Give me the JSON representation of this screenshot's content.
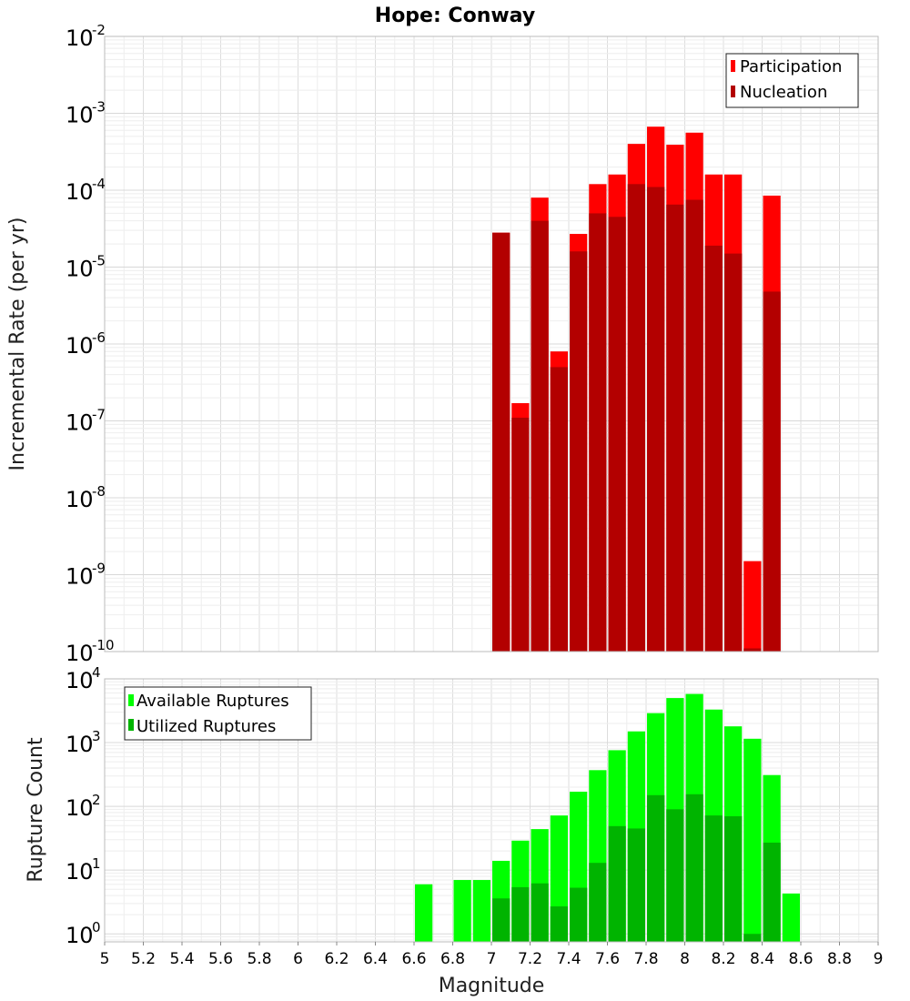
{
  "title": "Hope: Conway",
  "chart_data": [
    {
      "type": "bar",
      "ylabel": "Incremental Rate (per yr)",
      "yscale": "log",
      "ylim": [
        1e-10,
        0.01
      ],
      "xlim": [
        5,
        9
      ],
      "grid": true,
      "legend_position": "top-right",
      "bin_width": 0.1,
      "x": [
        7.05,
        7.15,
        7.25,
        7.35,
        7.45,
        7.55,
        7.65,
        7.75,
        7.85,
        7.95,
        8.05,
        8.15,
        8.25,
        8.35,
        8.45
      ],
      "series": [
        {
          "name": "Participation",
          "color": "#ff0000",
          "values": [
            2.8e-05,
            1.7e-07,
            8e-05,
            8e-07,
            2.7e-05,
            0.00012,
            0.00016,
            0.0004,
            0.00067,
            0.00039,
            0.00056,
            0.00016,
            0.00016,
            1.5e-09,
            8.5e-05
          ]
        },
        {
          "name": "Nucleation",
          "color": "#b30000",
          "values": [
            2.8e-05,
            1.1e-07,
            4e-05,
            5e-07,
            1.6e-05,
            5e-05,
            4.5e-05,
            0.00012,
            0.00011,
            6.5e-05,
            7.5e-05,
            1.9e-05,
            1.5e-05,
            1.1e-10,
            4.8e-06
          ]
        }
      ]
    },
    {
      "type": "bar",
      "xlabel": "Magnitude",
      "ylabel": "Rupture Count",
      "yscale": "log",
      "ylim": [
        0.75,
        10000
      ],
      "xlim": [
        5,
        9
      ],
      "grid": true,
      "legend_position": "top-left",
      "bin_width": 0.1,
      "x": [
        6.65,
        6.75,
        6.85,
        6.95,
        7.05,
        7.15,
        7.25,
        7.35,
        7.45,
        7.55,
        7.65,
        7.75,
        7.85,
        7.95,
        8.05,
        8.15,
        8.25,
        8.35,
        8.45,
        8.55
      ],
      "series": [
        {
          "name": "Available Ruptures",
          "color": "#00ff00",
          "values": [
            6,
            0,
            7,
            7,
            14,
            29,
            44,
            72,
            170,
            370,
            760,
            1500,
            2900,
            5000,
            5800,
            3300,
            1800,
            1150,
            310,
            4.3
          ]
        },
        {
          "name": "Utilized Ruptures",
          "color": "#00b400",
          "values": [
            0,
            0,
            0,
            0,
            3.6,
            5.4,
            6.2,
            2.7,
            5.3,
            13,
            49,
            45,
            150,
            90,
            155,
            72,
            70,
            1,
            27,
            0
          ]
        }
      ],
      "xticks": [
        "5",
        "5.2",
        "5.4",
        "5.6",
        "5.8",
        "6",
        "6.2",
        "6.4",
        "6.6",
        "6.8",
        "7",
        "7.2",
        "7.4",
        "7.6",
        "7.8",
        "8",
        "8.2",
        "8.4",
        "8.6",
        "8.8",
        "9"
      ]
    }
  ]
}
